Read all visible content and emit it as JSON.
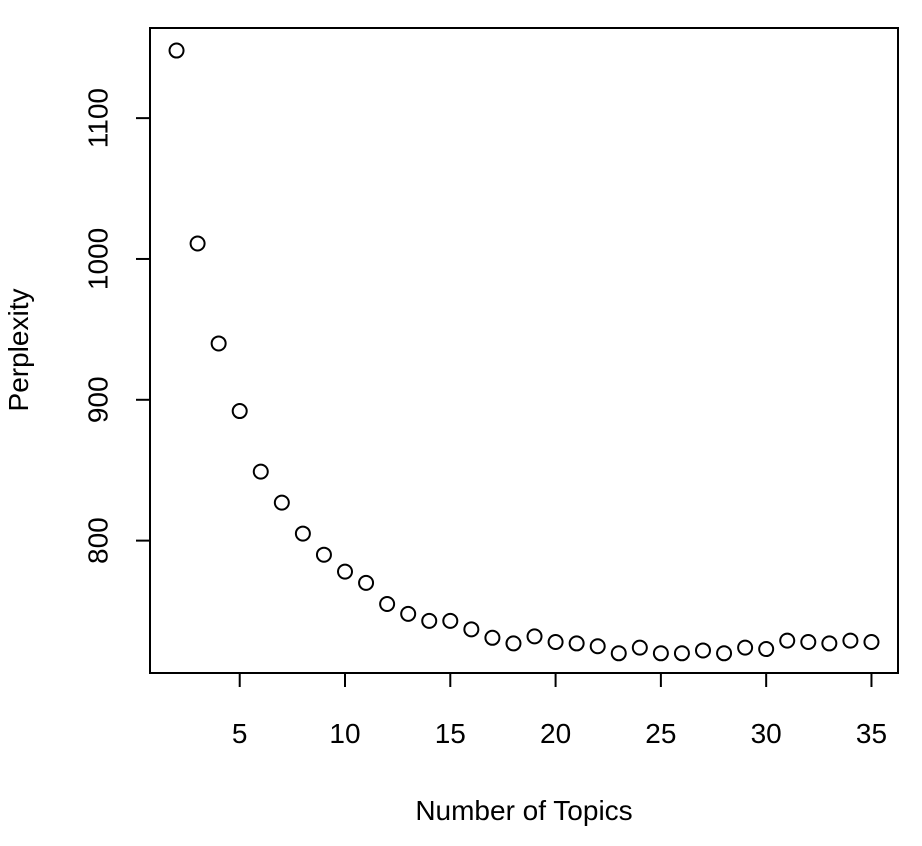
{
  "chart_data": {
    "type": "scatter",
    "title": "",
    "xlabel": "Number of Topics",
    "ylabel": "Perplexity",
    "x": [
      2,
      3,
      4,
      5,
      6,
      7,
      8,
      9,
      10,
      11,
      12,
      13,
      14,
      15,
      16,
      17,
      18,
      19,
      20,
      21,
      22,
      23,
      24,
      25,
      26,
      27,
      28,
      29,
      30,
      31,
      32,
      33,
      34,
      35
    ],
    "y": [
      1148,
      1011,
      940,
      892,
      849,
      827,
      805,
      790,
      778,
      770,
      755,
      748,
      743,
      743,
      737,
      731,
      727,
      732,
      728,
      727,
      725,
      720,
      724,
      720,
      720,
      722,
      720,
      724,
      723,
      729,
      728,
      727,
      729,
      728
    ],
    "xlim": [
      0.74,
      36.26
    ],
    "ylim": [
      706,
      1164
    ],
    "xticks": [
      5,
      10,
      15,
      20,
      25,
      30,
      35
    ],
    "xtick_labels": [
      "5",
      "10",
      "15",
      "20",
      "25",
      "30",
      "35"
    ],
    "yticks": [
      800,
      900,
      1000,
      1100
    ],
    "ytick_labels": [
      "800",
      "900",
      "1000",
      "1100"
    ],
    "marker": "open-circle",
    "grid": false,
    "legend": "none",
    "colors": {
      "marker_stroke": "#000000",
      "axis": "#000000",
      "background": "#ffffff"
    }
  }
}
